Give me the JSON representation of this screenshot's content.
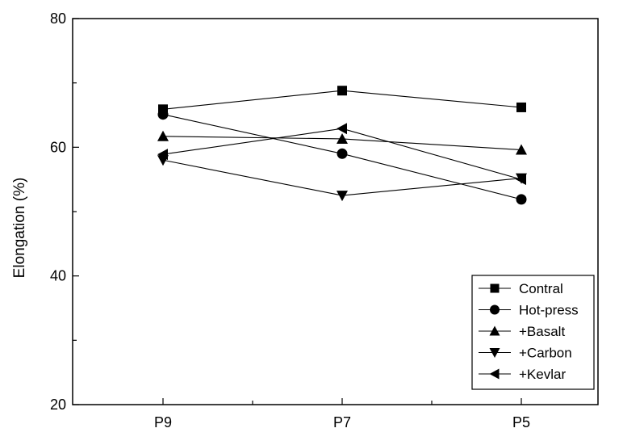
{
  "chart_data": {
    "type": "line",
    "title": "",
    "xlabel": "",
    "ylabel": "Elongation (%)",
    "categories": [
      "P9",
      "P7",
      "P5"
    ],
    "ylim": [
      20,
      80
    ],
    "yticks": [
      20,
      40,
      60,
      80
    ],
    "grid": false,
    "legend_position": "bottom-right",
    "colors": {
      "line": "#000000",
      "marker": "#000000",
      "axis": "#000000"
    },
    "series": [
      {
        "name": "Contral",
        "marker": "square",
        "values": [
          65.9,
          68.8,
          66.2
        ]
      },
      {
        "name": "Hot-press",
        "marker": "circle",
        "values": [
          65.1,
          59.0,
          51.9
        ]
      },
      {
        "name": "+Basalt",
        "marker": "triangle-up",
        "values": [
          61.7,
          61.3,
          59.6
        ]
      },
      {
        "name": "+Carbon",
        "marker": "triangle-down",
        "values": [
          58.0,
          52.5,
          55.2
        ]
      },
      {
        "name": "+Kevlar",
        "marker": "triangle-left",
        "values": [
          58.9,
          62.9,
          55.0
        ]
      }
    ]
  }
}
